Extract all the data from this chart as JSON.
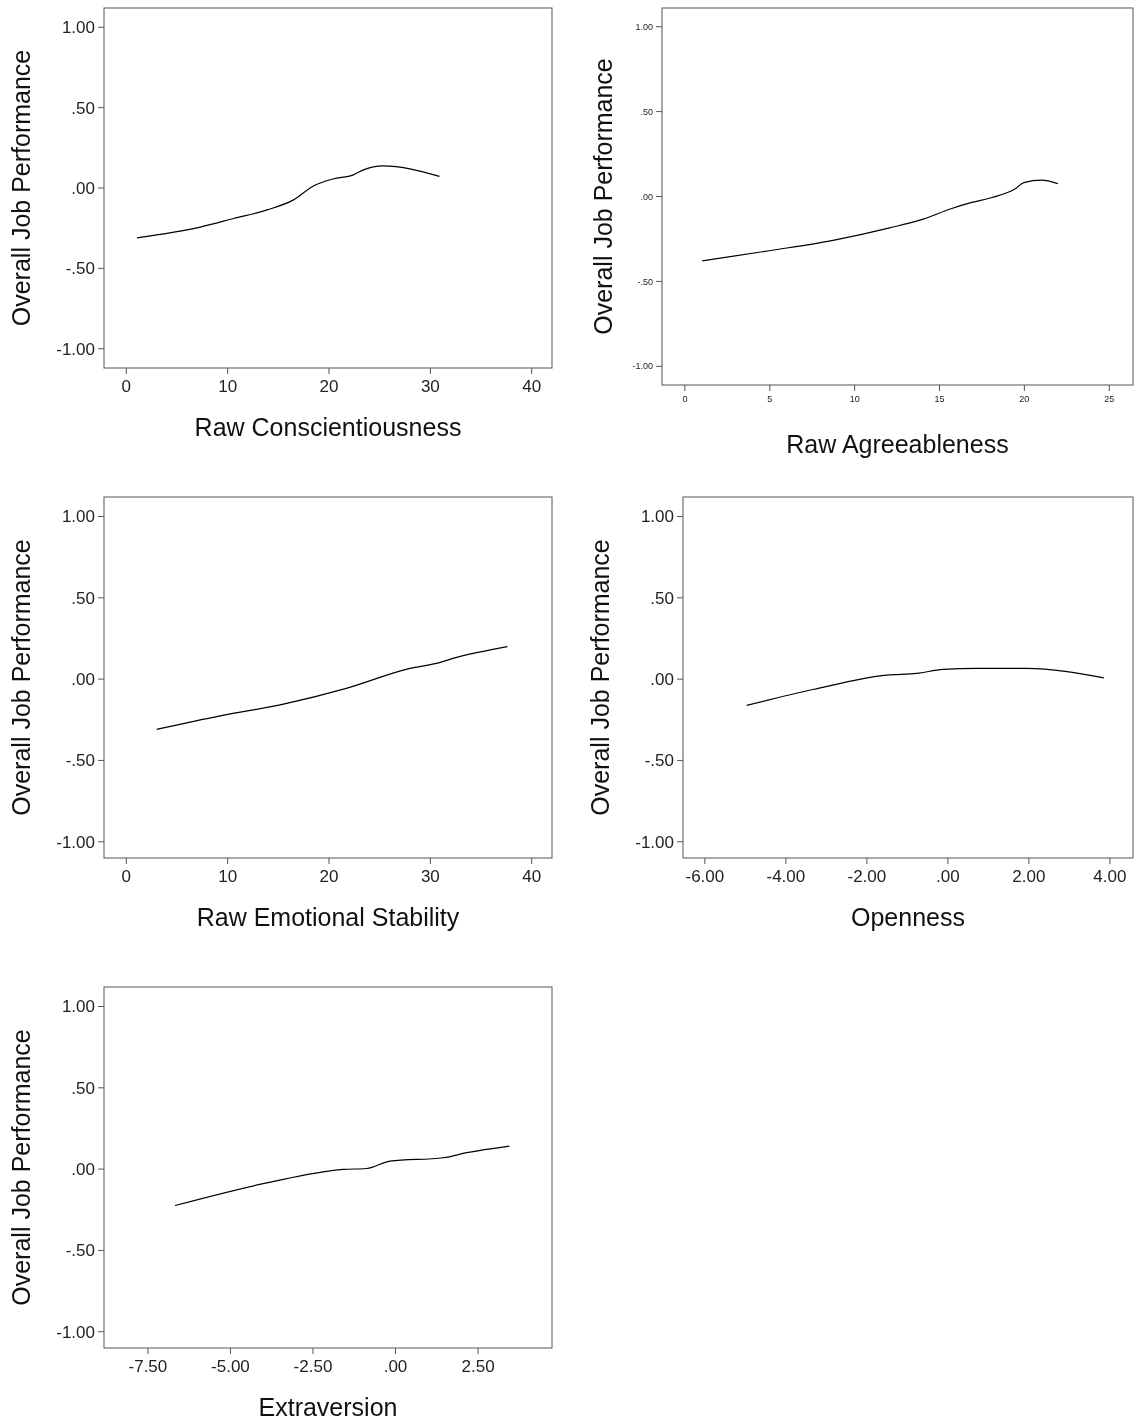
{
  "chart_data": [
    {
      "type": "line",
      "xlabel": "Raw Conscientiousness",
      "ylabel": "Overall Job Performance",
      "xlim": [
        -2.2,
        42
      ],
      "ylim": [
        -1.12,
        1.12
      ],
      "xticks": [
        0,
        10,
        20,
        30,
        40
      ],
      "yticks": [
        {
          "value": 1,
          "label": "1.00"
        },
        {
          "value": 0.5,
          "label": ".50"
        },
        {
          "value": 0,
          "label": ".00"
        },
        {
          "value": -0.5,
          "label": "-.50"
        },
        {
          "value": -1,
          "label": "-1.00"
        }
      ],
      "series": [
        {
          "color": "#000000",
          "x": [
            1.05,
            7.3,
            10.6,
            13.9,
            16.5,
            18.5,
            20.4,
            22.4,
            23.4,
            25.3,
            30.9
          ],
          "values": [
            -0.31,
            -0.243,
            -0.19,
            -0.136,
            -0.074,
            0.014,
            0.056,
            0.082,
            0.113,
            0.138,
            0.072
          ]
        }
      ]
    },
    {
      "type": "line",
      "xlabel": "Raw Agreeableness",
      "ylabel": "Overall Job Performance",
      "xlim": [
        -1.35,
        26.4
      ],
      "ylim": [
        -1.11,
        1.11
      ],
      "xticks": [
        0,
        5,
        10,
        15,
        20,
        25
      ],
      "yticks": [
        {
          "value": 1,
          "label": "1.00"
        },
        {
          "value": 0.5,
          "label": ".50"
        },
        {
          "value": 0,
          "label": ".00"
        },
        {
          "value": -0.5,
          "label": "-.50"
        },
        {
          "value": -1,
          "label": "-1.00"
        }
      ],
      "series": [
        {
          "color": "#000000",
          "x": [
            1.02,
            5.05,
            8.73,
            12.0,
            14.04,
            15.68,
            16.9,
            18.1,
            19.46,
            19.97,
            21.0,
            21.97
          ],
          "values": [
            -0.379,
            -0.318,
            -0.258,
            -0.186,
            -0.133,
            -0.072,
            -0.035,
            -0.006,
            0.045,
            0.082,
            0.096,
            0.076
          ]
        }
      ]
    },
    {
      "type": "line",
      "xlabel": "Raw Emotional Stability",
      "ylabel": "Overall Job Performance",
      "xlim": [
        -2.2,
        42
      ],
      "ylim": [
        -1.1,
        1.12
      ],
      "xticks": [
        0,
        10,
        20,
        30,
        40
      ],
      "yticks": [
        {
          "value": 1,
          "label": "1.00"
        },
        {
          "value": 0.5,
          "label": ".50"
        },
        {
          "value": 0,
          "label": ".00"
        },
        {
          "value": -0.5,
          "label": "-.50"
        },
        {
          "value": -1,
          "label": "-1.00"
        }
      ],
      "series": [
        {
          "color": "#000000",
          "x": [
            3.0,
            9.26,
            15.5,
            21.7,
            28.0,
            30.6,
            32.6,
            37.6
          ],
          "values": [
            -0.309,
            -0.226,
            -0.154,
            -0.057,
            0.066,
            0.097,
            0.134,
            0.2
          ]
        }
      ]
    },
    {
      "type": "line",
      "xlabel": "Openness",
      "ylabel": "Overall Job Performance",
      "xlim": [
        -6.54,
        4.57
      ],
      "ylim": [
        -1.1,
        1.12
      ],
      "xticks": [
        {
          "value": -6,
          "label": "-6.00"
        },
        {
          "value": -4,
          "label": "-4.00"
        },
        {
          "value": -2,
          "label": "-2.00"
        },
        {
          "value": 0,
          "label": ".00"
        },
        {
          "value": 2,
          "label": "2.00"
        },
        {
          "value": 4,
          "label": "4.00"
        }
      ],
      "yticks": [
        {
          "value": 1,
          "label": "1.00"
        },
        {
          "value": 0.5,
          "label": ".50"
        },
        {
          "value": 0,
          "label": ".00"
        },
        {
          "value": -0.5,
          "label": "-.50"
        },
        {
          "value": -1,
          "label": "-1.00"
        }
      ],
      "series": [
        {
          "color": "#000000",
          "x": [
            -4.97,
            -3.33,
            -1.51,
            -0.77,
            -0.12,
            0.71,
            1.94,
            3.85
          ],
          "values": [
            -0.162,
            -0.064,
            0.025,
            0.035,
            0.06,
            0.066,
            0.066,
            0.008
          ]
        }
      ]
    },
    {
      "type": "line",
      "xlabel": "Extraversion",
      "ylabel": "Overall Job Performance",
      "xlim": [
        -8.83,
        4.74
      ],
      "ylim": [
        -1.1,
        1.12
      ],
      "xticks": [
        {
          "value": -7.5,
          "label": "-7.50"
        },
        {
          "value": -5,
          "label": "-5.00"
        },
        {
          "value": -2.5,
          "label": "-2.50"
        },
        {
          "value": 0,
          "label": ".00"
        },
        {
          "value": 2.5,
          "label": "2.50"
        }
      ],
      "yticks": [
        {
          "value": 1,
          "label": "1.00"
        },
        {
          "value": 0.5,
          "label": ".50"
        },
        {
          "value": 0,
          "label": ".00"
        },
        {
          "value": -0.5,
          "label": "-.50"
        },
        {
          "value": -1,
          "label": "-1.00"
        }
      ],
      "series": [
        {
          "color": "#000000",
          "x": [
            -6.68,
            -3.9,
            -1.58,
            -0.87,
            -0.17,
            1.45,
            2.16,
            3.45
          ],
          "values": [
            -0.224,
            -0.085,
            -0.002,
            0.004,
            0.049,
            0.07,
            0.101,
            0.142
          ]
        }
      ]
    }
  ]
}
